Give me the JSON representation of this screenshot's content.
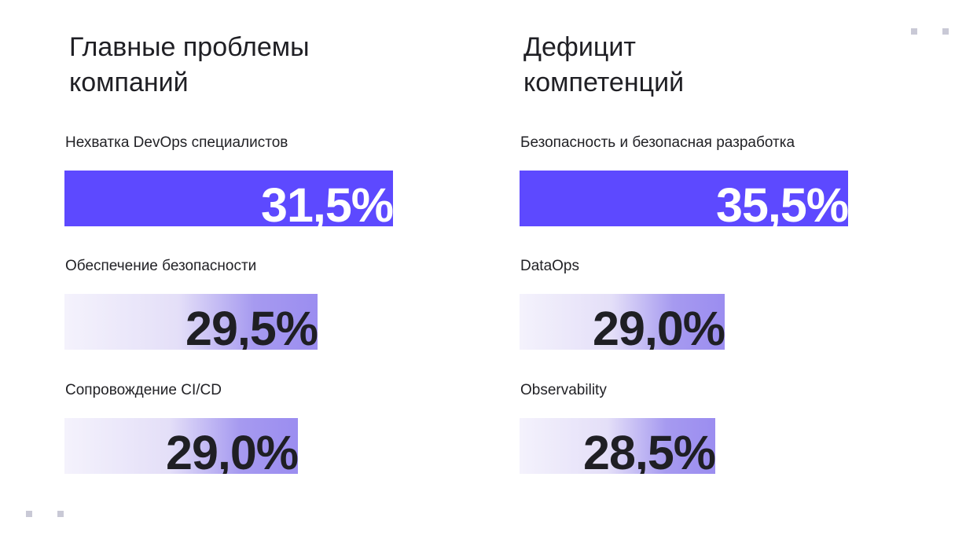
{
  "chart_data": [
    {
      "type": "bar",
      "title": "Главные проблемы\nкомпаний",
      "categories": [
        "Нехватка DevOps специалистов",
        "Обеспечение безопасности",
        "Сопровождение CI/CD"
      ],
      "values": [
        31.5,
        29.5,
        29.0
      ],
      "value_labels": [
        "31,5%",
        "29,5%",
        "29,0%"
      ],
      "unit": "%",
      "orientation": "horizontal",
      "highlight_index": 0,
      "colors": {
        "highlight": "#5d49ff",
        "fade_start": "#f4f2fc",
        "fade_end": "#9b8df0"
      }
    },
    {
      "type": "bar",
      "title": "Дефицит\nкомпетенций",
      "categories": [
        "Безопасность и безопасная разработка",
        "DataOps",
        "Observability"
      ],
      "values": [
        35.5,
        29.0,
        28.5
      ],
      "value_labels": [
        "35,5%",
        "29,0%",
        "28,5%"
      ],
      "unit": "%",
      "orientation": "horizontal",
      "highlight_index": 0,
      "colors": {
        "highlight": "#5d49ff",
        "fade_start": "#f4f2fc",
        "fade_end": "#9b8df0"
      }
    }
  ]
}
